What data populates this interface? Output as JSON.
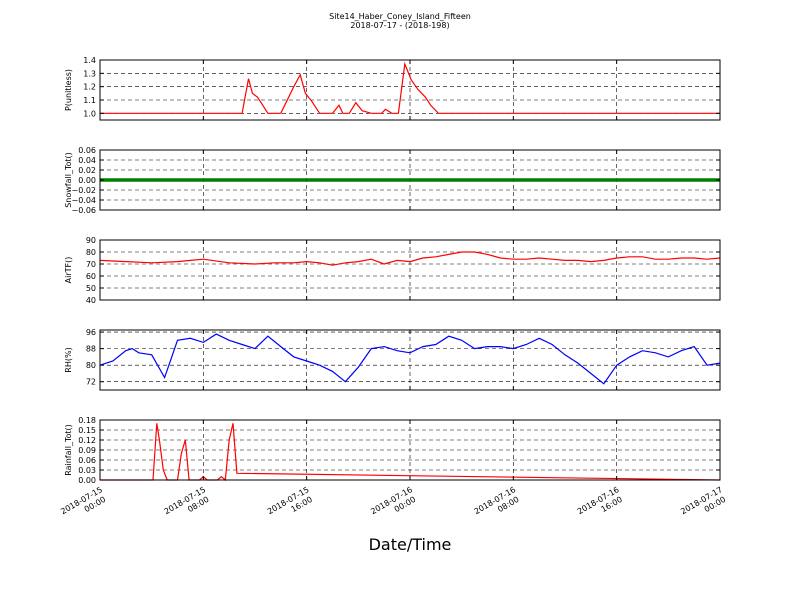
{
  "title_line1": "Site14_Haber_Coney_Island_Fifteen",
  "title_line2": "2018-07-17 - (2018-198)",
  "xlabel": "Date/Time",
  "chart_data": [
    {
      "type": "line",
      "ylabel": "P(unitless)",
      "ylim": [
        0.95,
        1.4
      ],
      "yticks": [
        "1.0",
        "1.1",
        "1.2",
        "1.3",
        "1.4"
      ],
      "ytick_values": [
        1.0,
        1.1,
        1.2,
        1.3,
        1.4
      ],
      "color": "#ff0000",
      "xlim": [
        0,
        48
      ],
      "grid": true,
      "x": [
        0,
        11.0,
        11.5,
        11.8,
        12.2,
        12.6,
        13.0,
        14.0,
        15.0,
        15.5,
        15.9,
        16.4,
        17.0,
        18.0,
        18.5,
        18.8,
        19.3,
        19.8,
        20.3,
        21.0,
        21.8,
        22.1,
        22.6,
        23.1,
        23.6,
        24.1,
        24.6,
        25.2,
        25.6,
        26.2,
        26.7,
        48
      ],
      "y": [
        1.0,
        1.0,
        1.26,
        1.15,
        1.12,
        1.06,
        1.0,
        1.0,
        1.2,
        1.29,
        1.15,
        1.09,
        1.0,
        1.0,
        1.06,
        1.0,
        1.0,
        1.08,
        1.02,
        1.0,
        1.0,
        1.03,
        1.0,
        1.0,
        1.37,
        1.25,
        1.18,
        1.12,
        1.06,
        1.0,
        1.0,
        1.0
      ]
    },
    {
      "type": "line",
      "ylabel": "Snowfall_Tot()",
      "ylim": [
        -0.06,
        0.06
      ],
      "yticks": [
        "−0.06",
        "−0.04",
        "−0.02",
        "0.00",
        "0.02",
        "0.04",
        "0.06"
      ],
      "ytick_values": [
        -0.06,
        -0.04,
        -0.02,
        0.0,
        0.02,
        0.04,
        0.06
      ],
      "color": "#008000",
      "xlim": [
        0,
        48
      ],
      "grid": true,
      "x": [
        0,
        48
      ],
      "y": [
        0.0,
        0.0
      ]
    },
    {
      "type": "line",
      "ylabel": "AirTF()",
      "ylim": [
        40,
        90
      ],
      "yticks": [
        "40",
        "50",
        "60",
        "70",
        "80",
        "90"
      ],
      "ytick_values": [
        40,
        50,
        60,
        70,
        80,
        90
      ],
      "color": "#ff0000",
      "xlim": [
        0,
        48
      ],
      "grid": true,
      "x": [
        0,
        2,
        4,
        6,
        7,
        8,
        10,
        12,
        13.5,
        15,
        16,
        17,
        18,
        19,
        20,
        21,
        22,
        23,
        24,
        25,
        26,
        27,
        28,
        29,
        30,
        31,
        32,
        33,
        34,
        35,
        36,
        37,
        38,
        39,
        40,
        41,
        42,
        43,
        44,
        45,
        46,
        47,
        48
      ],
      "y": [
        73,
        72,
        71,
        72,
        73,
        74,
        71,
        70,
        71,
        71,
        72,
        71,
        69,
        71,
        72,
        74,
        70,
        73,
        72,
        75,
        76,
        78,
        80,
        80,
        78,
        75,
        74,
        74,
        75,
        74,
        73,
        73,
        72,
        73,
        75,
        76,
        76,
        74,
        74,
        75,
        75,
        74,
        75
      ]
    },
    {
      "type": "line",
      "ylabel": "RH(%)",
      "ylim": [
        68,
        97
      ],
      "yticks": [
        "72",
        "80",
        "88",
        "96"
      ],
      "ytick_values": [
        72,
        80,
        88,
        96
      ],
      "color": "#0000ff",
      "xlim": [
        0,
        48
      ],
      "grid": true,
      "x": [
        0,
        1,
        2,
        2.5,
        3,
        4,
        5,
        6,
        7,
        8,
        9,
        10,
        11,
        12,
        13,
        14,
        15,
        16,
        17,
        18,
        19,
        20,
        21,
        22,
        23,
        24,
        25,
        26,
        27,
        28,
        29,
        30,
        31,
        32,
        33,
        34,
        35,
        36,
        37,
        38,
        39,
        40,
        41,
        42,
        43,
        44,
        45,
        46,
        47,
        48
      ],
      "y": [
        80,
        82,
        87,
        88,
        86,
        85,
        74,
        92,
        93,
        91,
        95,
        92,
        90,
        88,
        94,
        89,
        84,
        82,
        80,
        77,
        72,
        79,
        88,
        89,
        87,
        86,
        89,
        90,
        94,
        92,
        88,
        89,
        89,
        88,
        90,
        93,
        90,
        85,
        81,
        76,
        71,
        80,
        84,
        87,
        86,
        84,
        87,
        89,
        80,
        81
      ]
    },
    {
      "type": "line",
      "ylabel": "Rainfall_Tot()",
      "ylim": [
        0,
        0.18
      ],
      "yticks": [
        "0.00",
        "0.03",
        "0.06",
        "0.09",
        "0.12",
        "0.15",
        "0.18"
      ],
      "ytick_values": [
        0.0,
        0.03,
        0.06,
        0.09,
        0.12,
        0.15,
        0.18
      ],
      "color": "#ff0000",
      "xlim": [
        0,
        48
      ],
      "grid": true,
      "x": [
        0,
        3.5,
        3.8,
        4.1,
        4.4,
        4.6,
        4.9,
        5.2,
        5.4,
        5.7,
        6.0,
        6.3,
        6.6,
        6.9,
        7.4,
        7.7,
        8.0,
        8.3,
        8.8,
        9.1,
        9.4,
        9.7,
        10.0,
        10.3,
        10.6,
        48
      ],
      "y": [
        0.0,
        0.0,
        0.0,
        0.0,
        0.17,
        0.12,
        0.03,
        0.0,
        0.0,
        0.0,
        0.0,
        0.08,
        0.12,
        0.0,
        0.0,
        0.0,
        0.01,
        0.0,
        0.0,
        0.0,
        0.01,
        0.0,
        0.12,
        0.17,
        0.02,
        0.0
      ]
    }
  ],
  "xticks": [
    {
      "value": 0,
      "label1": "2018-07-15",
      "label2": "00:00"
    },
    {
      "value": 8,
      "label1": "2018-07-15",
      "label2": "08:00"
    },
    {
      "value": 16,
      "label1": "2018-07-15",
      "label2": "16:00"
    },
    {
      "value": 24,
      "label1": "2018-07-16",
      "label2": "00:00"
    },
    {
      "value": 32,
      "label1": "2018-07-16",
      "label2": "08:00"
    },
    {
      "value": 40,
      "label1": "2018-07-16",
      "label2": "16:00"
    },
    {
      "value": 48,
      "label1": "2018-07-17",
      "label2": "00:00"
    }
  ]
}
